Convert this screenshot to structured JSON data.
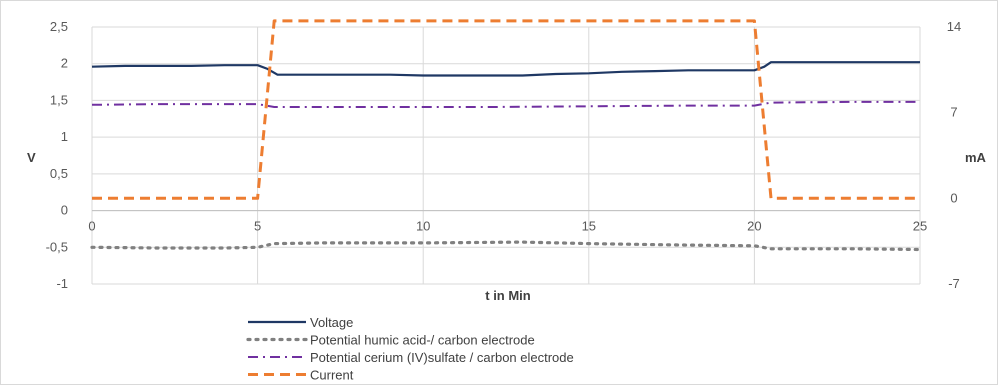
{
  "chart_data": {
    "type": "line",
    "xlabel": "t in Min",
    "ylabel_left": "V",
    "ylabel_right": "mA",
    "x_ticks": [
      "0",
      "5",
      "10",
      "15",
      "20",
      "25"
    ],
    "x_tick_values": [
      0,
      5,
      10,
      15,
      20,
      25
    ],
    "xlim": [
      0,
      25
    ],
    "y_left_ticks": [
      "2,5",
      "2",
      "1,5",
      "1",
      "0,5",
      "0",
      "-0,5",
      "-1"
    ],
    "y_left_tick_values": [
      2.5,
      2,
      1.5,
      1,
      0.5,
      0,
      -0.5,
      -1
    ],
    "ylim_left": [
      -1,
      2.5
    ],
    "y_right_ticks": [
      "14",
      "7",
      "0",
      "-7"
    ],
    "y_right_tick_values": [
      14,
      7,
      0,
      -7
    ],
    "ylim_right": [
      -7,
      14
    ],
    "grid": "horizontal",
    "legend_position": "bottom",
    "series": [
      {
        "name": "Voltage",
        "axis": "left",
        "color": "#1f3864",
        "dash": "solid",
        "x": [
          0,
          1,
          3,
          4,
          5,
          5.3,
          5.6,
          7,
          9,
          10,
          11,
          13,
          14,
          15,
          16,
          17,
          18,
          19,
          20,
          20.3,
          20.5,
          22,
          24,
          25
        ],
        "y": [
          1.96,
          1.97,
          1.97,
          1.98,
          1.98,
          1.93,
          1.85,
          1.85,
          1.85,
          1.84,
          1.84,
          1.84,
          1.86,
          1.87,
          1.89,
          1.9,
          1.91,
          1.91,
          1.91,
          1.96,
          2.02,
          2.02,
          2.02,
          2.02
        ]
      },
      {
        "name": "Potential humic acid-/ carbon electrode",
        "axis": "left",
        "color": "#808080",
        "dash": "dot",
        "x": [
          0,
          2,
          4,
          5,
          5.5,
          7,
          10,
          13,
          15,
          18,
          20,
          20.5,
          23,
          25
        ],
        "y": [
          -0.5,
          -0.51,
          -0.51,
          -0.5,
          -0.45,
          -0.44,
          -0.44,
          -0.43,
          -0.45,
          -0.47,
          -0.48,
          -0.52,
          -0.52,
          -0.53
        ]
      },
      {
        "name": "Potential cerium (IV)sulfate / carbon electrode",
        "axis": "left",
        "color": "#7030a0",
        "dash": "dashdot",
        "x": [
          0,
          2,
          4,
          5,
          5.5,
          8,
          10,
          12,
          15,
          18,
          20,
          20.5,
          23,
          25
        ],
        "y": [
          1.44,
          1.45,
          1.45,
          1.45,
          1.41,
          1.41,
          1.41,
          1.41,
          1.42,
          1.43,
          1.43,
          1.47,
          1.48,
          1.48
        ]
      },
      {
        "name": "Current",
        "axis": "right",
        "color": "#ed7d31",
        "dash": "dash",
        "x": [
          0,
          5,
          5.5,
          20,
          20.5,
          25
        ],
        "y": [
          0,
          0,
          14.5,
          14.5,
          0,
          0
        ]
      }
    ]
  }
}
